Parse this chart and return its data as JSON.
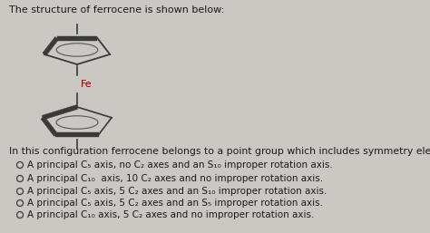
{
  "title": "The structure of ferrocene is shown below:",
  "intro_text": "In this configuration ferrocene belongs to a point group which includes symmetry elements:",
  "options": [
    "A principal C₅ axis, no C₂ axes and an S₁₀ improper rotation axis.",
    "A principal C₁₀  axis, 10 C₂ axes and no improper rotation axis.",
    "A principal C₅ axis, 5 C₂ axes and an S₁₀ improper rotation axis.",
    "A principal C₅ axis, 5 C₂ axes and an S₅ improper rotation axis.",
    "A principal C₁₀ axis, 5 C₂ axes and no improper rotation axis."
  ],
  "bg_color": "#cbc8c4",
  "text_color": "#1a1a1a",
  "title_fontsize": 8.0,
  "option_fontsize": 7.5,
  "intro_fontsize": 7.8,
  "fe_color": "#8B0000",
  "ring_color": "#3a3a3a"
}
